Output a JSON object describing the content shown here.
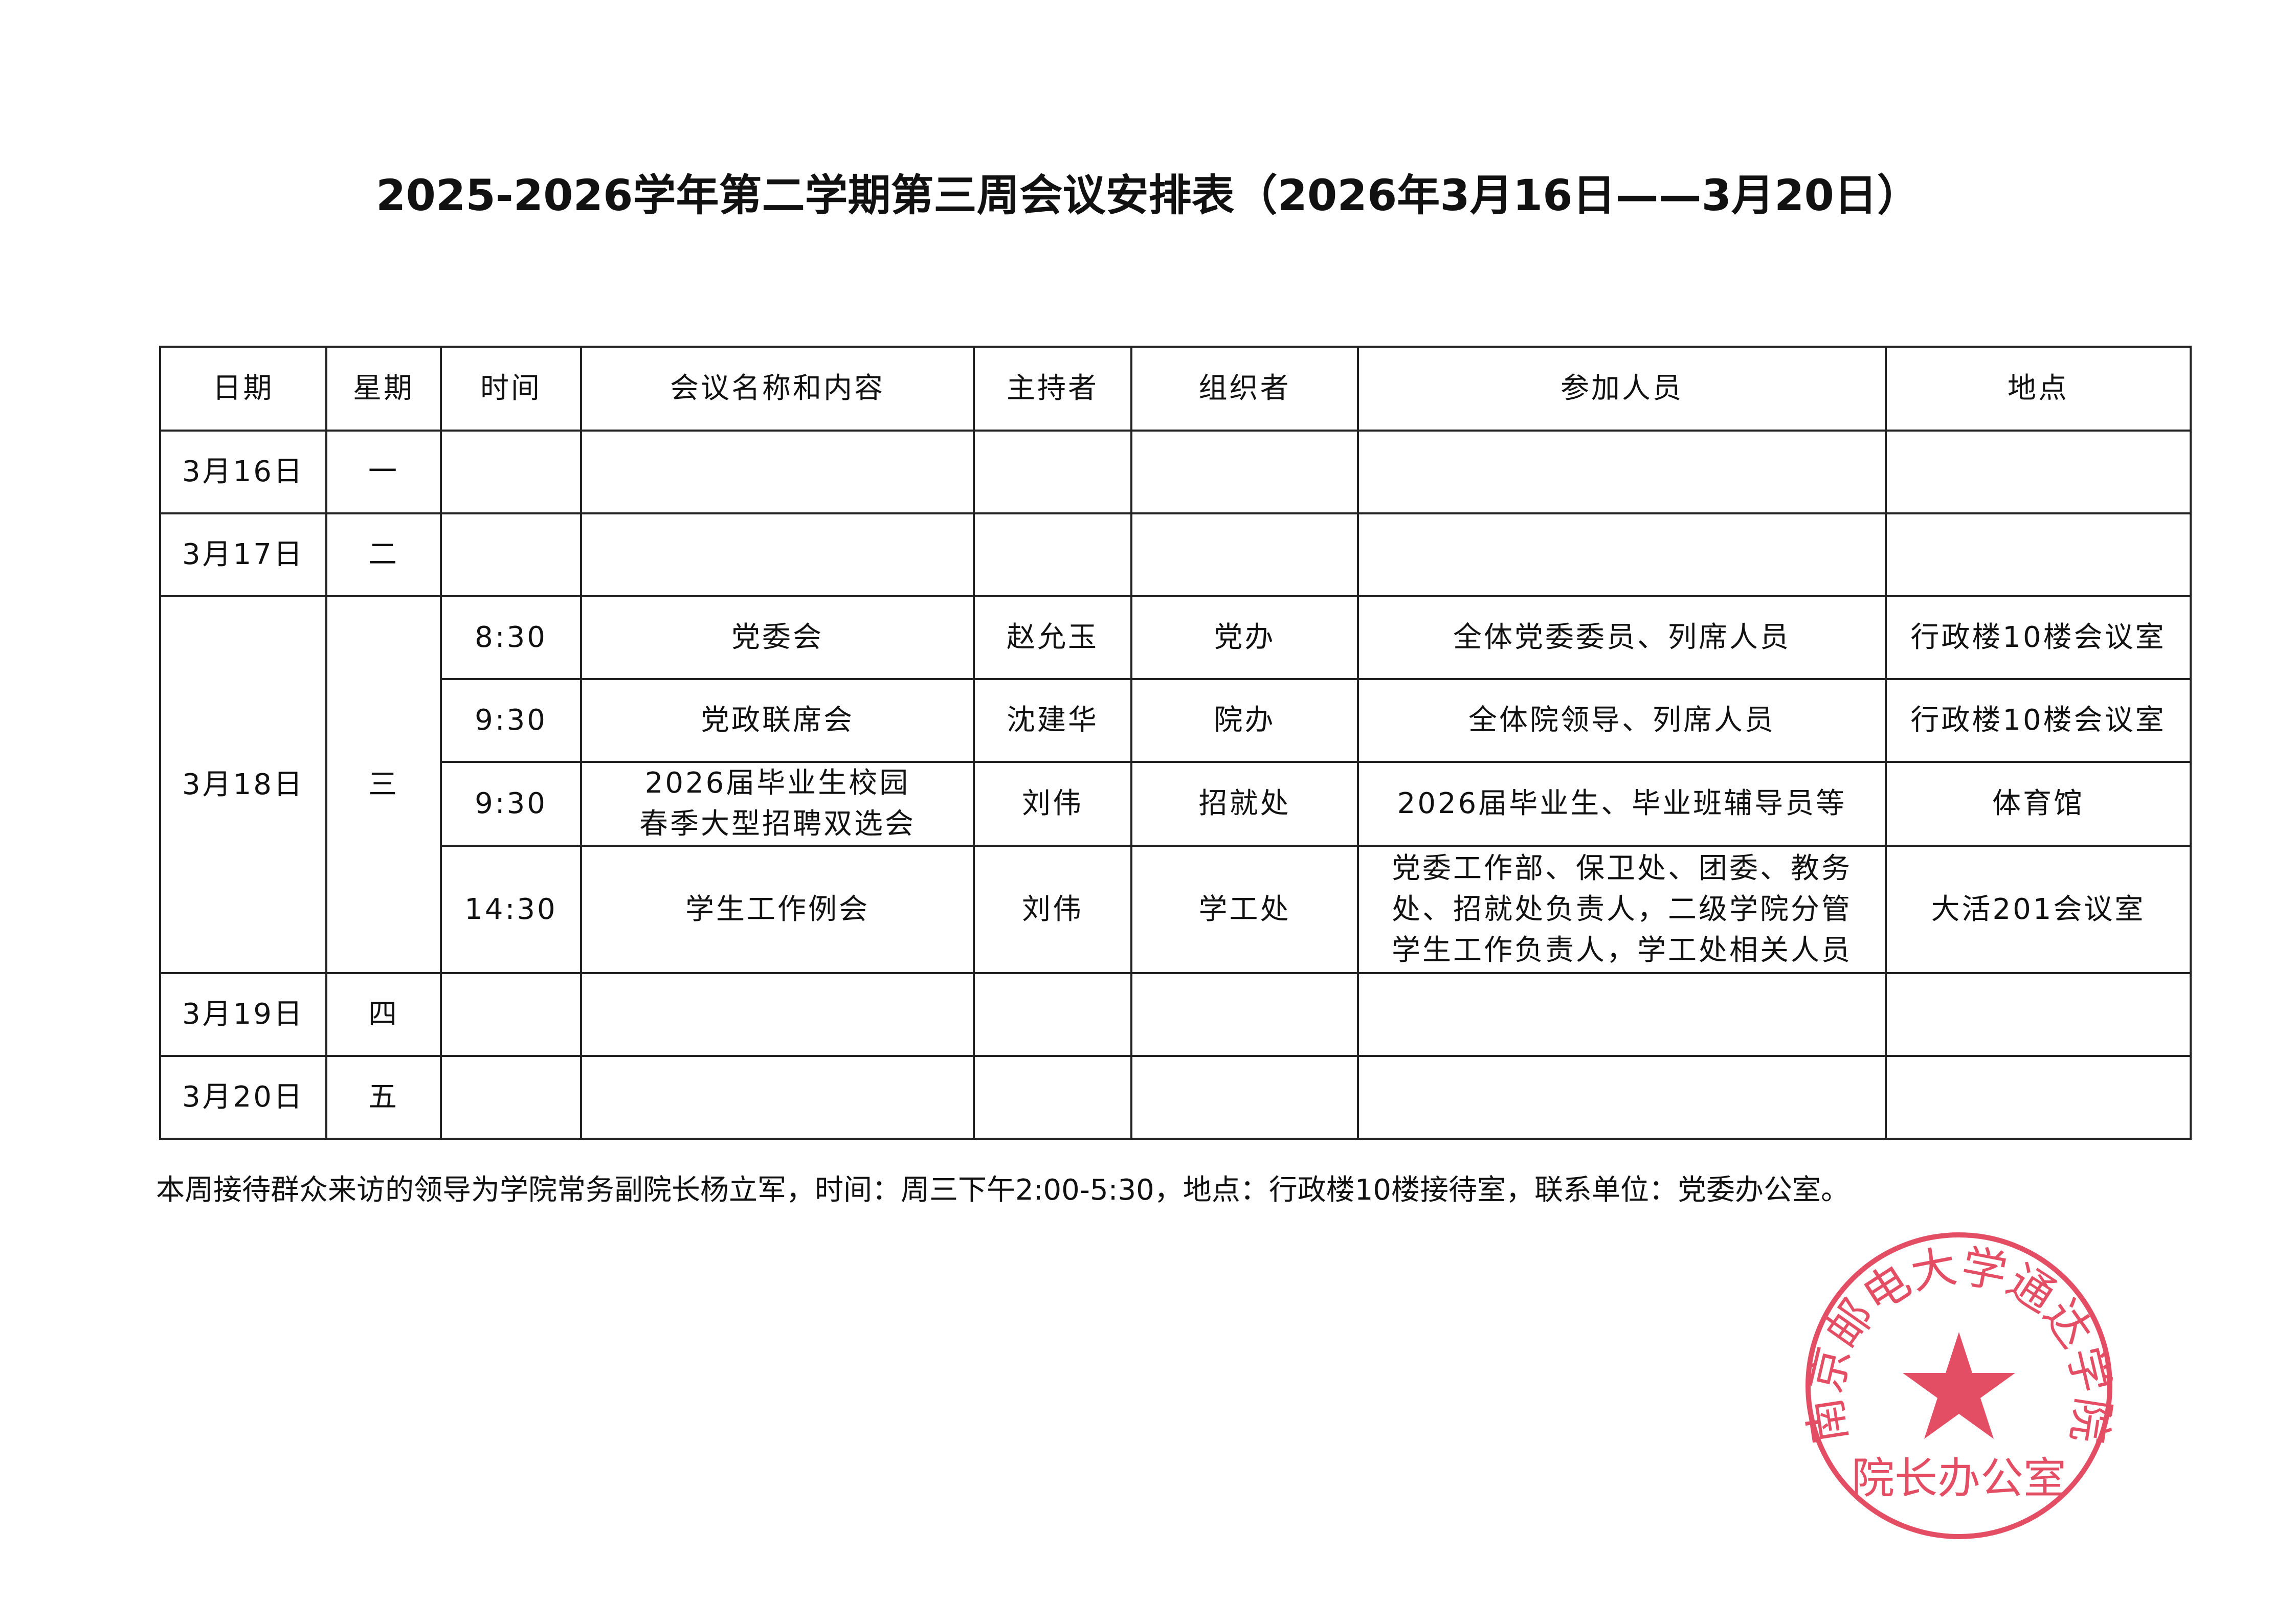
{
  "title": "2025-2026学年第二学期第三周会议安排表（2026年3月16日——3月20日）",
  "headers": [
    "日期",
    "星期",
    "时间",
    "会议名称和内容",
    "主持者",
    "组织者",
    "参加人员",
    "地点"
  ],
  "days": [
    {
      "date": "3月16日",
      "weekday": "一"
    },
    {
      "date": "3月17日",
      "weekday": "二"
    },
    {
      "date": "3月18日",
      "weekday": "三",
      "meetings": [
        {
          "time": "8:30",
          "name": "党委会",
          "host": "赵允玉",
          "organizer": "党办",
          "attendees": "全体党委委员、列席人员",
          "location": "行政楼10楼会议室"
        },
        {
          "time": "9:30",
          "name": "党政联席会",
          "host": "沈建华",
          "organizer": "院办",
          "attendees": "全体院领导、列席人员",
          "location": "行政楼10楼会议室"
        },
        {
          "time": "9:30",
          "name_line1": "2026届毕业生校园",
          "name_line2": "春季大型招聘双选会",
          "host": "刘伟",
          "organizer": "招就处",
          "attendees": "2026届毕业生、毕业班辅导员等",
          "location": "体育馆"
        },
        {
          "time": "14:30",
          "name": "学生工作例会",
          "host": "刘伟",
          "organizer": "学工处",
          "attendees_line1": "党委工作部、保卫处、团委、教务",
          "attendees_line2": "处、招就处负责人，二级学院分管",
          "attendees_line3": "学生工作负责人，学工处相关人员",
          "location": "大活201会议室"
        }
      ]
    },
    {
      "date": "3月19日",
      "weekday": "四"
    },
    {
      "date": "3月20日",
      "weekday": "五"
    }
  ],
  "footer": "本周接待群众来访的领导为学院常务副院长杨立军，时间：周三下午2:00-5:30，地点：行政楼10楼接待室，联系单位：党委办公室。",
  "seal": {
    "outer_text": "南京邮电大学通达学院",
    "inner_text": "院长办公室",
    "color": "#e0304a"
  }
}
